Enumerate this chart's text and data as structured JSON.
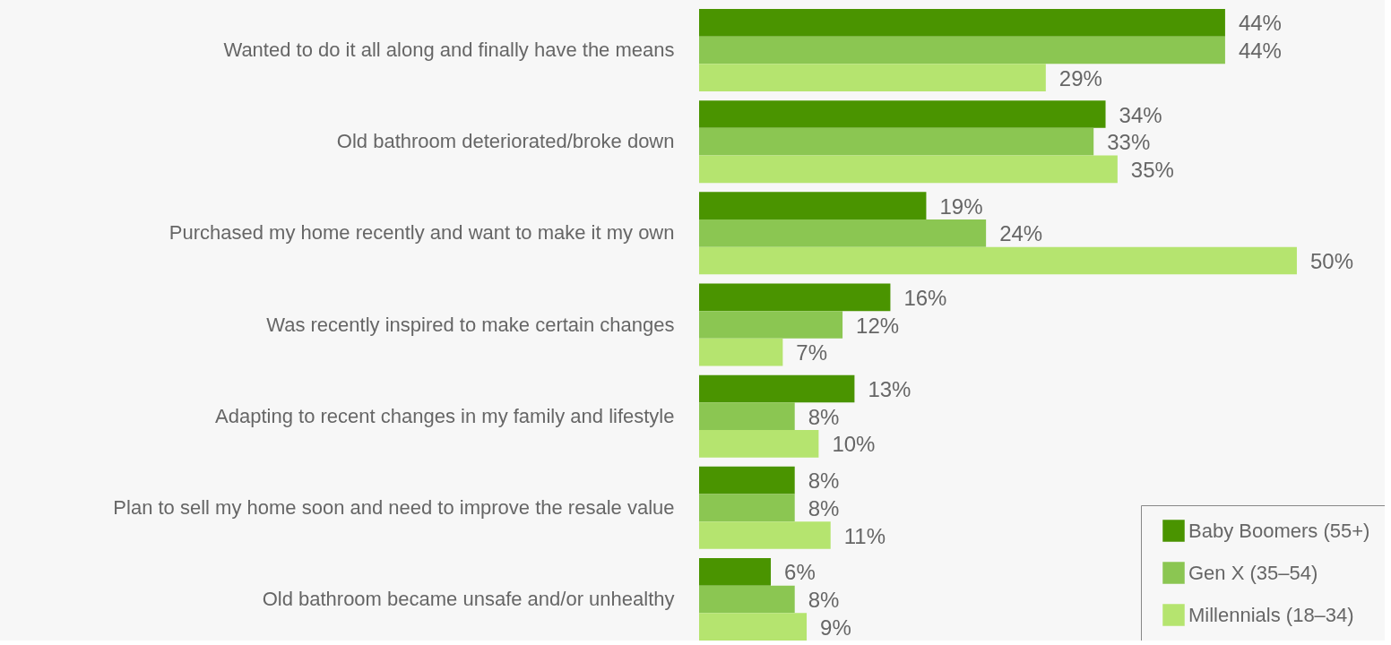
{
  "chart_data": {
    "type": "bar",
    "orientation": "horizontal",
    "legend": "bottom right",
    "tick_labels": "y",
    "categories": [
      "Wanted to do it all along and finally have the means",
      "Old bathroom deteriorated/broke down",
      "Purchased my home recently and want to make it my own",
      "Was recently inspired to make certain changes",
      "Adapting to recent changes in my family and lifestyle",
      "Plan to sell my home soon and need to improve the resale value",
      "Old bathroom became unsafe and/or unhealthy"
    ],
    "series": [
      {
        "name": "Baby Boomers (55+)",
        "color": "#4a9400",
        "values": [
          44,
          34,
          19,
          16,
          13,
          8,
          6
        ],
        "value_labels": [
          "44%",
          "34%",
          "19%",
          "16%",
          "13%",
          "8%",
          "6%"
        ]
      },
      {
        "name": "Gen X (35–54)",
        "color": "#8bc652",
        "values": [
          44,
          33,
          24,
          12,
          8,
          8,
          8
        ],
        "value_labels": [
          "44%",
          "33%",
          "24%",
          "12%",
          "8%",
          "8%",
          "8%"
        ]
      },
      {
        "name": "Millennials (18–34)",
        "color": "#b5e46f",
        "values": [
          29,
          35,
          50,
          7,
          10,
          11,
          9
        ],
        "value_labels": [
          "29%",
          "35%",
          "50%",
          "7%",
          "10%",
          "11%",
          "9%"
        ]
      }
    ]
  }
}
